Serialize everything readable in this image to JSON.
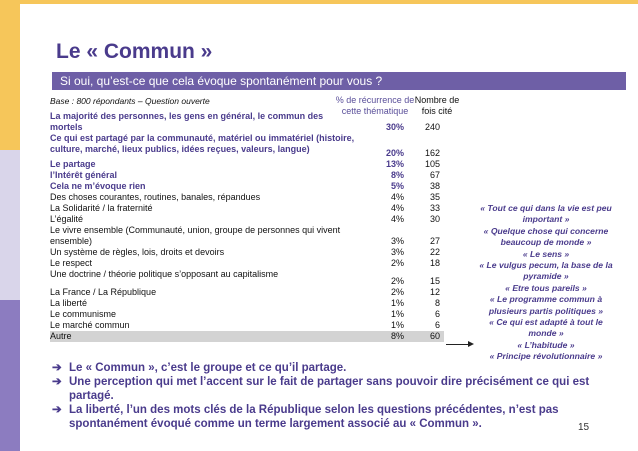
{
  "title": "Le « Commun »",
  "banner": "Si oui, qu’est-ce que cela évoque spontanément pour vous ?",
  "base_note": "Base : 800 répondants – Question ouverte",
  "headers": {
    "pct": "% de récurrence de cette thématique",
    "count": "Nombre de fois cité"
  },
  "rows": [
    {
      "label": "La majorité des personnes, les gens en général, le commun des mortels",
      "pct": "30%",
      "count": "240",
      "style": "purple"
    },
    {
      "label": "Ce qui est partagé par la communauté, matériel ou immatériel (histoire, culture, marché, lieux publics, idées reçues, valeurs, langue)",
      "pct": "20%",
      "count": "162",
      "style": "purple"
    },
    {
      "label": "Le partage",
      "pct": "13%",
      "count": "105",
      "style": "purple"
    },
    {
      "label": "l’Intérêt général",
      "pct": "8%",
      "count": "67",
      "style": "purple"
    },
    {
      "label": "Cela ne m’évoque rien",
      "pct": "5%",
      "count": "38",
      "style": "purple"
    },
    {
      "label": "Des choses courantes, routines, banales, répandues",
      "pct": "4%",
      "count": "35",
      "style": ""
    },
    {
      "label": "La Solidarité / la fraternité",
      "pct": "4%",
      "count": "33",
      "style": ""
    },
    {
      "label": "L’égalité",
      "pct": "4%",
      "count": "30",
      "style": ""
    },
    {
      "label": "Le vivre ensemble (Communauté, union, groupe de personnes qui vivent ensemble)",
      "pct": "3%",
      "count": "27",
      "style": ""
    },
    {
      "label": "Un système de règles, lois, droits et devoirs",
      "pct": "3%",
      "count": "22",
      "style": ""
    },
    {
      "label": "Le respect",
      "pct": "2%",
      "count": "18",
      "style": ""
    },
    {
      "label": "Une doctrine / théorie politique s’opposant au capitalisme",
      "pct": "2%",
      "count": "15",
      "style": ""
    },
    {
      "label": "La France / La République",
      "pct": "2%",
      "count": "12",
      "style": ""
    },
    {
      "label": "La liberté",
      "pct": "1%",
      "count": "8",
      "style": ""
    },
    {
      "label": "Le communisme",
      "pct": "1%",
      "count": "6",
      "style": ""
    },
    {
      "label": "Le marché commun",
      "pct": "1%",
      "count": "6",
      "style": ""
    },
    {
      "label": "Autre",
      "pct": "8%",
      "count": "60",
      "style": "highlight"
    }
  ],
  "quotes": [
    "« Tout ce qui dans la vie est peu important »",
    "« Quelque chose qui concerne beaucoup de monde »",
    "« Le sens »",
    "« Le vulgus pecum, la base de la pyramide »",
    "« Etre tous pareils »",
    "« Le programme commun à plusieurs partis politiques »",
    "« Ce qui est adapté à tout le monde »",
    "« L’habitude »",
    "« Principe révolutionnaire »"
  ],
  "bullets": [
    "Le « Commun », c’est le groupe et ce qu’il partage.",
    "Une perception qui met l’accent sur le fait de partager sans pouvoir dire précisément ce qui est partagé.",
    "La liberté, l’un des mots clés de la République selon les questions précédentes, n’est pas spontanément évoqué comme un terme largement associé au « Commun »."
  ],
  "page_number": "15",
  "colors": {
    "accent": "#4a3b8c",
    "banner": "#6e5fa6",
    "gold": "#f6c65a",
    "lavender": "#d9d5ea",
    "purple_bar": "#8c7cc0"
  }
}
